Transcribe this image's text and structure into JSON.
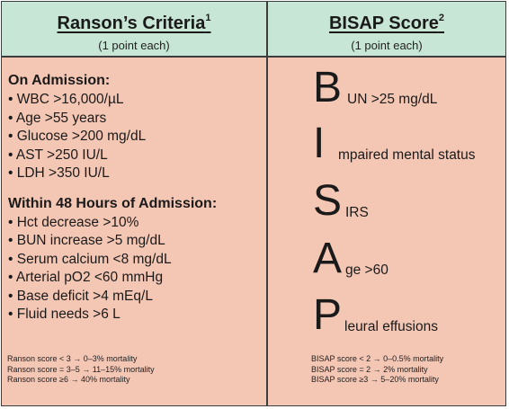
{
  "ranson": {
    "title": "Ranson’s Criteria",
    "sup": "1",
    "subtitle": "(1 point each)",
    "on_admission": {
      "heading": "On Admission:",
      "items": [
        "• WBC >16,000/µL",
        "• Age >55 years",
        "• Glucose >200 mg/dL",
        "• AST >250 IU/L",
        "• LDH >350 IU/L"
      ]
    },
    "within_48h": {
      "heading": "Within 48 Hours of Admission:",
      "items": [
        "• Hct decrease >10%",
        "• BUN increase >5 mg/dL",
        "• Serum calcium <8 mg/dL",
        "• Arterial pO2 <60 mmHg",
        "• Base deficit >4 mEq/L",
        "• Fluid needs >6 L"
      ]
    },
    "notes": [
      "Ranson score < 3 → 0–3% mortality",
      "Ranson score = 3–5 → 11–15% mortality",
      "Ranson score ≥6 → 40% mortality"
    ]
  },
  "bisap": {
    "title": "BISAP Score",
    "sup": "2",
    "subtitle": "(1 point each)",
    "rows": [
      {
        "letter": "B",
        "rest": "UN >25 mg/dL"
      },
      {
        "letter": "I",
        "rest": "mpaired mental status"
      },
      {
        "letter": "S",
        "rest": "IRS"
      },
      {
        "letter": "A",
        "rest": "ge >60"
      },
      {
        "letter": "P",
        "rest": "leural effusions"
      }
    ],
    "notes": [
      "BISAP score < 2 → 0–0.5% mortality",
      "BISAP score = 2 → 2% mortality",
      "BISAP score ≥3 → 5–20% mortality"
    ]
  },
  "colors": {
    "header_bg": "#c8e6d5",
    "body_bg": "#f4c6b4",
    "border": "#3d3d3d"
  }
}
